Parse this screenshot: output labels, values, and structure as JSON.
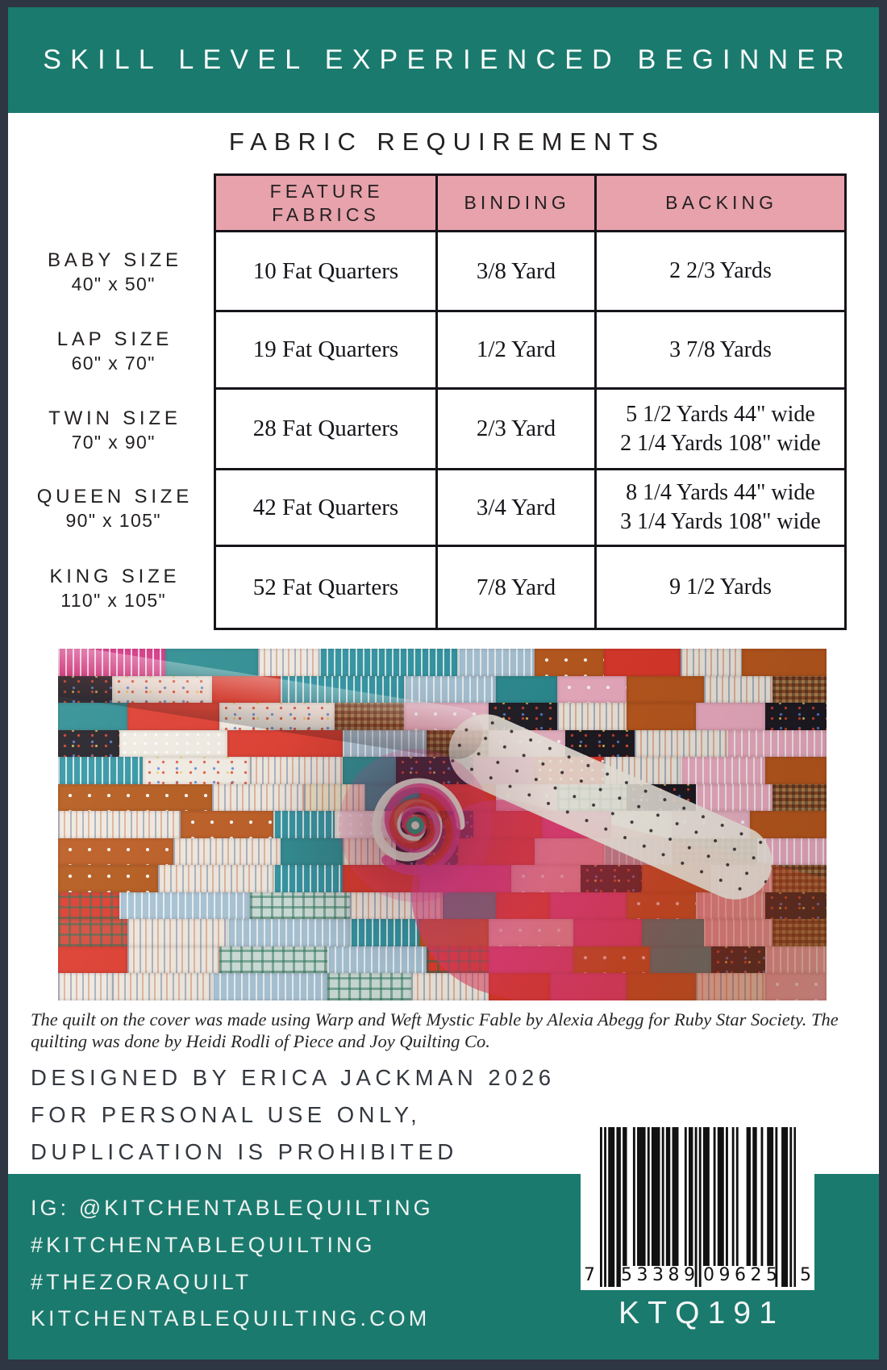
{
  "banner": {
    "title": "SKILL LEVEL EXPERIENCED BEGINNER"
  },
  "fabric_requirements": {
    "heading": "FABRIC REQUIREMENTS",
    "columns": [
      "FEATURE FABRICS",
      "BINDING",
      "BACKING"
    ],
    "rows": [
      {
        "size_label": "BABY SIZE",
        "size_dims": "40\" x 50\"",
        "feature": "10 Fat Quarters",
        "binding": "3/8 Yard",
        "backing": [
          "2 2/3 Yards"
        ]
      },
      {
        "size_label": "LAP SIZE",
        "size_dims": "60\" x 70\"",
        "feature": "19 Fat Quarters",
        "binding": "1/2 Yard",
        "backing": [
          "3 7/8 Yards"
        ]
      },
      {
        "size_label": "TWIN SIZE",
        "size_dims": "70\" x 90\"",
        "feature": "28 Fat Quarters",
        "binding": "2/3 Yard",
        "backing": [
          "5 1/2 Yards 44\" wide",
          "2 1/4 Yards 108\" wide"
        ]
      },
      {
        "size_label": "QUEEN SIZE",
        "size_dims": "90\" x 105\"",
        "feature": "42 Fat Quarters",
        "binding": "3/4 Yard",
        "backing": [
          "8 1/4 Yards 44\" wide",
          "3 1/4 Yards 108\" wide"
        ]
      },
      {
        "size_label": "KING SIZE",
        "size_dims": "110\" x 105\"",
        "feature": "52 Fat Quarters",
        "binding": "7/8 Yard",
        "backing": [
          "9 1/2 Yards"
        ]
      }
    ]
  },
  "quilt_photo": {
    "alt": "Photograph of a colorful patchwork strip quilt gathered into a swirl at the center, made of teal, red, rust orange, cream, black, pink and plaid fabrics",
    "palette": {
      "T": "#2b8d92",
      "TS": "#2f96a3",
      "LB": "#a9c6d8",
      "GP": "#cfe0da",
      "R": "#e03a2c",
      "O": "#bd5a1f",
      "OS": "#b55818",
      "W": "#f3eee4",
      "WS": "#f2ece0",
      "WD": "#f4efe6",
      "K": "#201d25",
      "KD": "#1e1b23",
      "P": "#f0afc4",
      "PS": "#eeb7c9",
      "HP": "#e2408d",
      "MG": "#d63384",
      "BR": "#7c4526",
      "BC": "#8d4d2a",
      "Y": "#efe7c8",
      "RP": "#d94a3a"
    },
    "rows": [
      [
        [
          14,
          "MG",
          "v"
        ],
        [
          12,
          "T",
          "0"
        ],
        [
          8,
          "W",
          "c"
        ],
        [
          18,
          "TS",
          "v"
        ],
        [
          10,
          "LB",
          "v"
        ],
        [
          9,
          "O",
          "s"
        ],
        [
          10,
          "R",
          "0"
        ],
        [
          8,
          "WS",
          "c"
        ],
        [
          11,
          "O",
          "0"
        ]
      ],
      [
        [
          7,
          "K",
          "m"
        ],
        [
          13,
          "WD",
          "m"
        ],
        [
          9,
          "R",
          "0"
        ],
        [
          16,
          "TS",
          "v"
        ],
        [
          12,
          "LB",
          "v"
        ],
        [
          8,
          "T",
          "0"
        ],
        [
          9,
          "P",
          "s"
        ],
        [
          10,
          "O",
          "0"
        ],
        [
          9,
          "WS",
          "c"
        ],
        [
          7,
          "BC",
          "k"
        ]
      ],
      [
        [
          9,
          "T",
          "0"
        ],
        [
          12,
          "R",
          "0"
        ],
        [
          15,
          "WD",
          "m"
        ],
        [
          9,
          "BC",
          "k"
        ],
        [
          11,
          "PS",
          "s"
        ],
        [
          9,
          "K",
          "m"
        ],
        [
          9,
          "WS",
          "c"
        ],
        [
          9,
          "O",
          "0"
        ],
        [
          9,
          "P",
          "0"
        ],
        [
          8,
          "KD",
          "m"
        ]
      ],
      [
        [
          8,
          "KD",
          "m"
        ],
        [
          14,
          "W",
          "d"
        ],
        [
          15,
          "R",
          "0"
        ],
        [
          11,
          "LB",
          "v"
        ],
        [
          8,
          "BC",
          "k"
        ],
        [
          10,
          "PS",
          "s"
        ],
        [
          9,
          "KD",
          "m"
        ],
        [
          12,
          "WS",
          "c"
        ],
        [
          13,
          "P",
          "v"
        ]
      ],
      [
        [
          11,
          "TS",
          "v"
        ],
        [
          14,
          "WD",
          "m"
        ],
        [
          12,
          "WS",
          "c"
        ],
        [
          7,
          "T",
          "0"
        ],
        [
          10,
          "KD",
          "m"
        ],
        [
          8,
          "HP",
          "0"
        ],
        [
          9,
          "R",
          "d"
        ],
        [
          10,
          "WS",
          "c"
        ],
        [
          11,
          "P",
          "v"
        ],
        [
          8,
          "O",
          "0"
        ]
      ],
      [
        [
          20,
          "OS",
          "s"
        ],
        [
          12,
          "WS",
          "c"
        ],
        [
          8,
          "Y",
          "c"
        ],
        [
          7,
          "T",
          "0"
        ],
        [
          10,
          "R",
          "0"
        ],
        [
          8,
          "P",
          "s"
        ],
        [
          9,
          "GP",
          "p"
        ],
        [
          9,
          "KD",
          "m"
        ],
        [
          10,
          "P",
          "v"
        ],
        [
          7,
          "BC",
          "k"
        ]
      ],
      [
        [
          16,
          "WS",
          "c"
        ],
        [
          12,
          "O",
          "s"
        ],
        [
          8,
          "TS",
          "v"
        ],
        [
          8,
          "W",
          "d"
        ],
        [
          10,
          "KD",
          "m"
        ],
        [
          9,
          "R",
          "0"
        ],
        [
          9,
          "HP",
          "0"
        ],
        [
          8,
          "W",
          "s"
        ],
        [
          10,
          "PS",
          "s"
        ],
        [
          10,
          "O",
          "0"
        ]
      ],
      [
        [
          15,
          "O",
          "s"
        ],
        [
          14,
          "WS",
          "c"
        ],
        [
          8,
          "T",
          "0"
        ],
        [
          7,
          "Y",
          "c"
        ],
        [
          8,
          "K",
          "m"
        ],
        [
          10,
          "R",
          "0"
        ],
        [
          9,
          "P",
          "0"
        ],
        [
          9,
          "LB",
          "v"
        ],
        [
          11,
          "BC",
          "k"
        ],
        [
          9,
          "P",
          "v"
        ]
      ],
      [
        [
          13,
          "OS",
          "s"
        ],
        [
          15,
          "WS",
          "c"
        ],
        [
          9,
          "TS",
          "v"
        ],
        [
          10,
          "R",
          "0"
        ],
        [
          12,
          "HP",
          "0"
        ],
        [
          9,
          "P",
          "s"
        ],
        [
          8,
          "KD",
          "m"
        ],
        [
          9,
          "O",
          "0"
        ],
        [
          8,
          "P",
          "v"
        ],
        [
          7,
          "BC",
          "k"
        ]
      ],
      [
        [
          8,
          "R",
          "p"
        ],
        [
          17,
          "LB",
          "v"
        ],
        [
          13,
          "GP",
          "p"
        ],
        [
          12,
          "WS",
          "c"
        ],
        [
          7,
          "T",
          "0"
        ],
        [
          7,
          "R",
          "0"
        ],
        [
          10,
          "HP",
          "0"
        ],
        [
          9,
          "O",
          "s"
        ],
        [
          9,
          "P",
          "v"
        ],
        [
          8,
          "KD",
          "m"
        ]
      ],
      [
        [
          9,
          "RP",
          "p"
        ],
        [
          13,
          "WS",
          "c"
        ],
        [
          16,
          "LB",
          "v"
        ],
        [
          9,
          "TS",
          "v"
        ],
        [
          9,
          "O",
          "0"
        ],
        [
          11,
          "PS",
          "s"
        ],
        [
          9,
          "HP",
          "0"
        ],
        [
          8,
          "T",
          "0"
        ],
        [
          9,
          "P",
          "v"
        ],
        [
          7,
          "BR",
          "k"
        ]
      ],
      [
        [
          9,
          "R",
          "0"
        ],
        [
          12,
          "WS",
          "c"
        ],
        [
          14,
          "GP",
          "p"
        ],
        [
          13,
          "LB",
          "v"
        ],
        [
          8,
          "R",
          "p"
        ],
        [
          11,
          "HP",
          "0"
        ],
        [
          10,
          "O",
          "s"
        ],
        [
          8,
          "T",
          "0"
        ],
        [
          7,
          "KD",
          "m"
        ],
        [
          8,
          "P",
          "v"
        ]
      ],
      [
        [
          7,
          "W",
          "c"
        ],
        [
          13,
          "WS",
          "c"
        ],
        [
          15,
          "LB",
          "v"
        ],
        [
          11,
          "GP",
          "p"
        ],
        [
          10,
          "WS",
          "c"
        ],
        [
          8,
          "R",
          "0"
        ],
        [
          10,
          "HP",
          "0"
        ],
        [
          9,
          "O",
          "0"
        ],
        [
          9,
          "WS",
          "c"
        ],
        [
          8,
          "P",
          "s"
        ]
      ]
    ]
  },
  "caption_lines": [
    "The quilt on the cover was made using Warp and Weft Mystic Fable by Alexia Abegg for Ruby Star Society. The",
    "quilting was done by Heidi Rodli of Piece and Joy Quilting Co."
  ],
  "credits_lines": [
    "DESIGNED BY ERICA JACKMAN 2026",
    "FOR PERSONAL USE ONLY,",
    "DUPLICATION IS PROHIBITED"
  ],
  "footer": {
    "lines": [
      "IG: @KITCHENTABLEQUILTING",
      "#KITCHENTABLEQUILTING",
      "#THEZORAQUILT",
      "KITCHENTABLEQUILTING.COM"
    ],
    "product_code": "KTQ191"
  },
  "barcode": {
    "display": "7 53389 09625 5",
    "left_digit": "7",
    "group1": "53389",
    "group2": "09625",
    "right_digit": "5",
    "pattern": "10101110110110001011110101111010110111000101101010111001011101001010000110110010011101001110101"
  },
  "colors": {
    "teal": "#1b7a6e",
    "frame_navy": "#2e3543",
    "header_pink": "#e7a2ac",
    "ink": "#242021"
  }
}
